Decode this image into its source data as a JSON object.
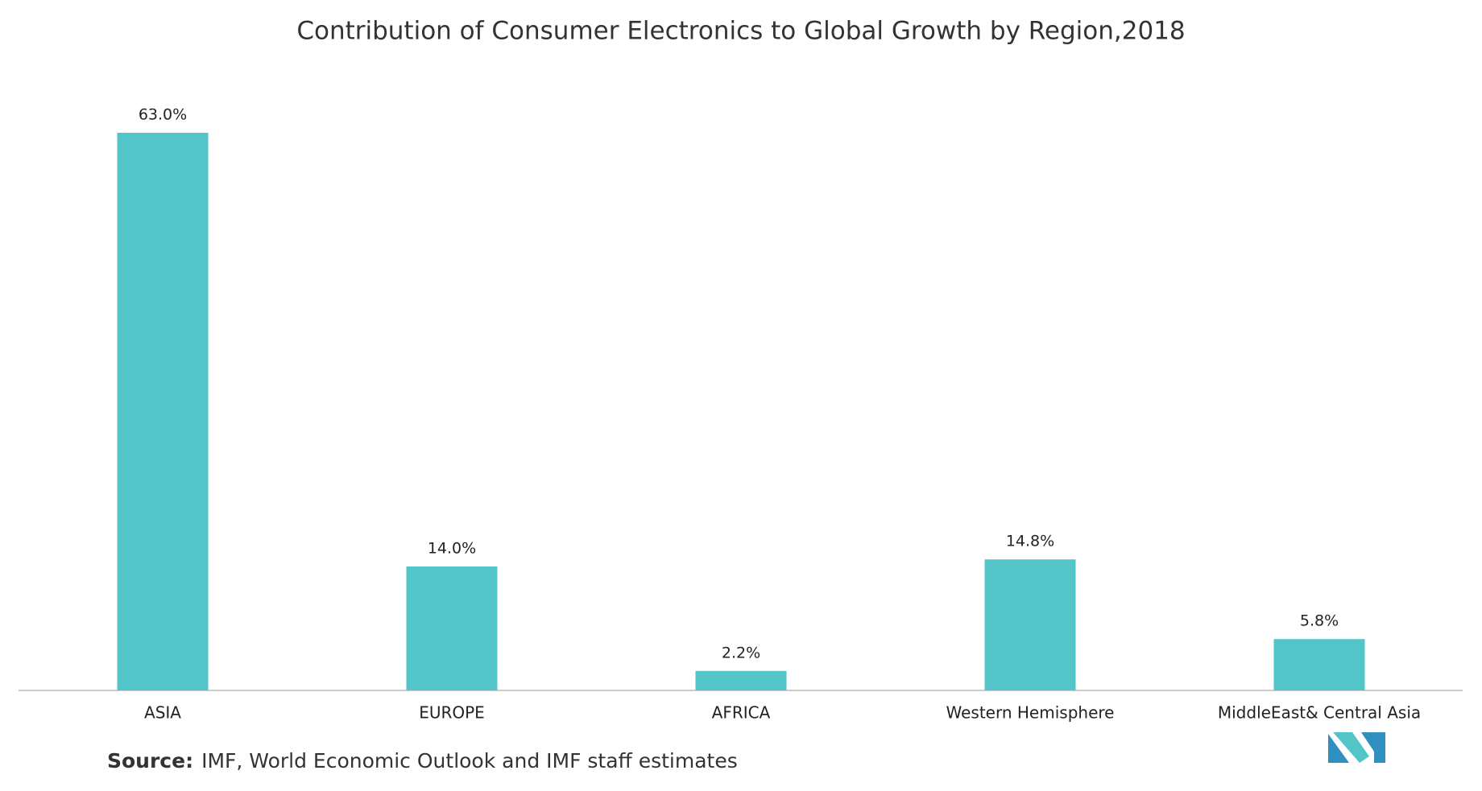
{
  "chart_data": {
    "type": "bar",
    "title": "Contribution of Consumer Electronics to Global Growth by Region,2018",
    "categories": [
      "ASIA",
      "EUROPE",
      "AFRICA",
      "Western Hemisphere",
      "MiddleEast& Central Asia"
    ],
    "values": [
      63.0,
      14.0,
      2.2,
      14.8,
      5.8
    ],
    "value_labels": [
      "63.0%",
      "14.0%",
      "2.2%",
      "14.8%",
      "5.8%"
    ],
    "color": "#53c4c7",
    "source_label": "Source:",
    "source_text": "IMF, World Economic Outlook and IMF staff estimates"
  }
}
